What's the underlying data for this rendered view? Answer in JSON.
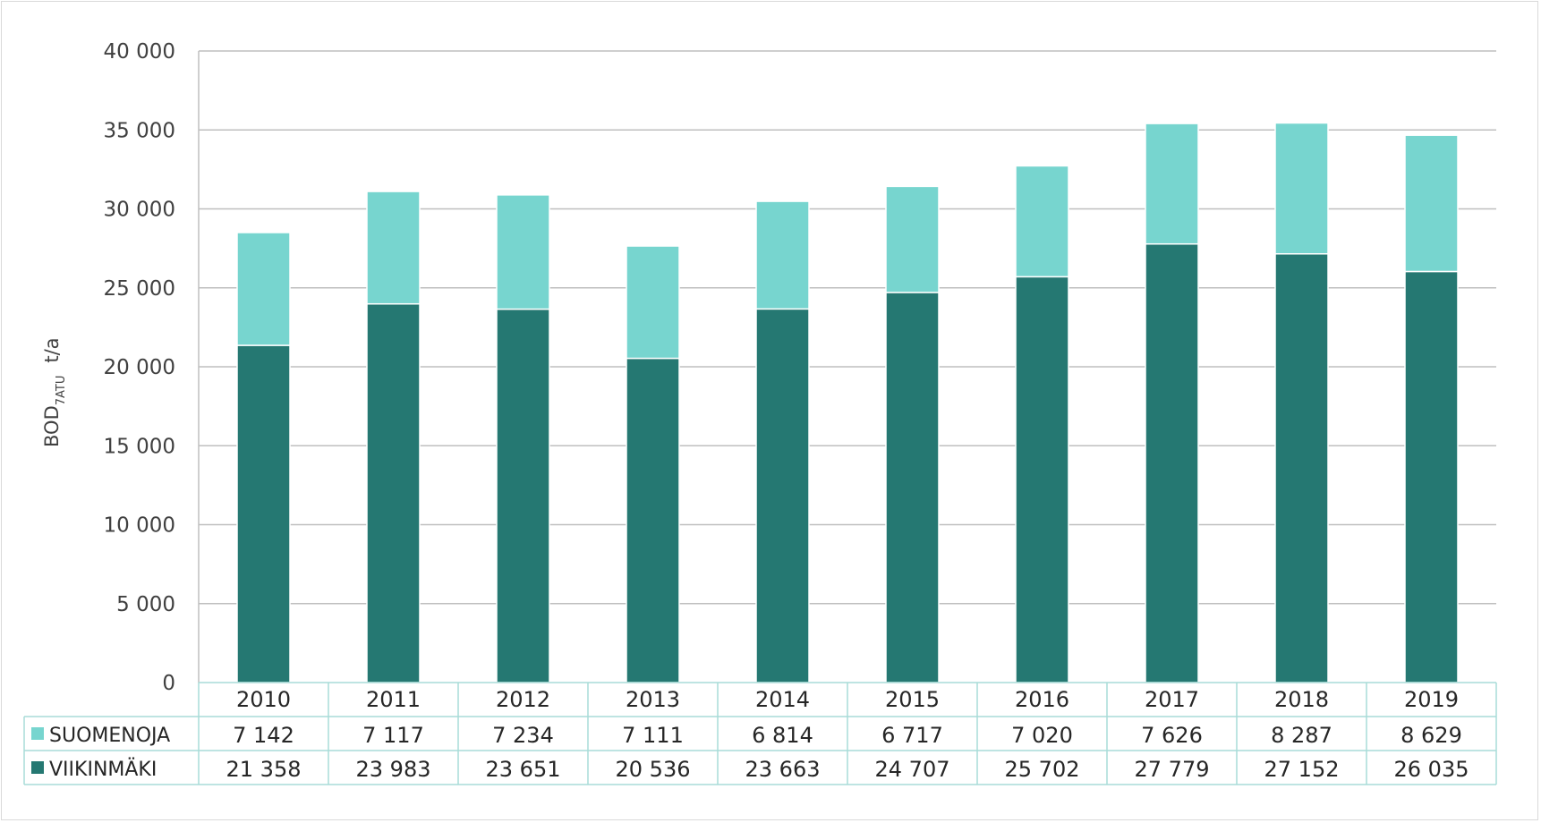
{
  "chart_data": {
    "type": "bar",
    "stacked": true,
    "title": "",
    "ylabel": "BOD7ATU t/a",
    "ylabel_parts": {
      "main": "BOD",
      "sub": "7ATU",
      "unit": "t/a"
    },
    "ylim": [
      0,
      40000
    ],
    "yticks": [
      0,
      5000,
      10000,
      15000,
      20000,
      25000,
      30000,
      35000,
      40000
    ],
    "ytick_labels": [
      "0",
      "5 000",
      "10 000",
      "15 000",
      "20 000",
      "25 000",
      "30 000",
      "35 000",
      "40 000"
    ],
    "grid": true,
    "legend_placement": "data-table-left",
    "categories": [
      "2010",
      "2011",
      "2012",
      "2013",
      "2014",
      "2015",
      "2016",
      "2017",
      "2018",
      "2019"
    ],
    "series": [
      {
        "name": "VIIKINMÄKI",
        "color": "#257872",
        "values": [
          21358,
          23983,
          23651,
          20536,
          23663,
          24707,
          25702,
          27779,
          27152,
          26035
        ],
        "labels": [
          "21 358",
          "23 983",
          "23 651",
          "20 536",
          "23 663",
          "24 707",
          "25 702",
          "27 779",
          "27 152",
          "26 035"
        ]
      },
      {
        "name": "SUOMENOJA",
        "color": "#77d5cf",
        "values": [
          7142,
          7117,
          7234,
          7111,
          6814,
          6717,
          7020,
          7626,
          8287,
          8629
        ],
        "labels": [
          "7 142",
          "7 117",
          "7 234",
          "7 111",
          "6 814",
          "6 717",
          "7 020",
          "7 626",
          "8 287",
          "8 629"
        ]
      }
    ]
  }
}
